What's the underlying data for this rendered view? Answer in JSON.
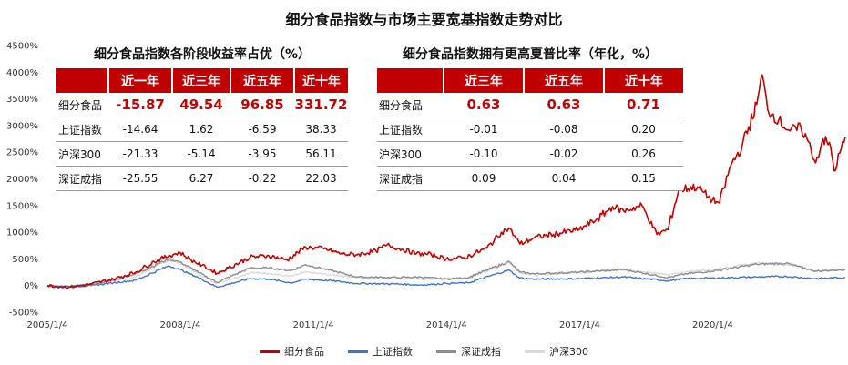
{
  "title": "细分食品指数与市场主要宽基指数走势对比",
  "chart_data": {
    "type": "line",
    "ylim": [
      -500,
      4500
    ],
    "yticks": [
      "-500%",
      "0%",
      "500%",
      "1000%",
      "1500%",
      "2000%",
      "2500%",
      "3000%",
      "3500%",
      "4000%",
      "4500%"
    ],
    "yunit": "%",
    "xlim": [
      "2005/1/4",
      "2022/12/31"
    ],
    "xticks": [
      "2005/1/4",
      "2008/1/4",
      "2011/1/4",
      "2014/1/4",
      "2017/1/4",
      "2020/1/4"
    ],
    "series": [
      {
        "name": "细分食品",
        "color": "#c00000",
        "points": [
          [
            "2005/1/4",
            0
          ],
          [
            "2005/7/1",
            -30
          ],
          [
            "2006/1/1",
            30
          ],
          [
            "2006/7/1",
            120
          ],
          [
            "2007/1/1",
            250
          ],
          [
            "2007/6/1",
            450
          ],
          [
            "2007/10/1",
            560
          ],
          [
            "2008/1/1",
            620
          ],
          [
            "2008/4/1",
            480
          ],
          [
            "2008/7/1",
            380
          ],
          [
            "2008/11/1",
            230
          ],
          [
            "2009/2/1",
            330
          ],
          [
            "2009/8/1",
            530
          ],
          [
            "2010/1/1",
            560
          ],
          [
            "2010/6/1",
            480
          ],
          [
            "2010/11/1",
            720
          ],
          [
            "2011/4/1",
            690
          ],
          [
            "2011/9/1",
            590
          ],
          [
            "2012/1/1",
            580
          ],
          [
            "2012/6/1",
            650
          ],
          [
            "2012/9/1",
            760
          ],
          [
            "2013/1/1",
            680
          ],
          [
            "2013/5/1",
            600
          ],
          [
            "2013/9/1",
            580
          ],
          [
            "2014/1/1",
            500
          ],
          [
            "2014/6/1",
            520
          ],
          [
            "2014/12/1",
            700
          ],
          [
            "2015/4/1",
            1000
          ],
          [
            "2015/6/1",
            1080
          ],
          [
            "2015/9/1",
            780
          ],
          [
            "2016/1/1",
            900
          ],
          [
            "2016/6/1",
            960
          ],
          [
            "2017/1/1",
            1050
          ],
          [
            "2017/6/1",
            1250
          ],
          [
            "2017/10/1",
            1480
          ],
          [
            "2018/1/1",
            1400
          ],
          [
            "2018/6/1",
            1500
          ],
          [
            "2018/10/1",
            960
          ],
          [
            "2019/1/1",
            1050
          ],
          [
            "2019/4/1",
            1800
          ],
          [
            "2019/9/1",
            1850
          ],
          [
            "2020/1/1",
            1600
          ],
          [
            "2020/3/1",
            1550
          ],
          [
            "2020/6/1",
            2250
          ],
          [
            "2020/9/1",
            2600
          ],
          [
            "2021/1/1",
            3400
          ],
          [
            "2021/2/15",
            3950
          ],
          [
            "2021/4/1",
            3300
          ],
          [
            "2021/7/1",
            3100
          ],
          [
            "2021/10/1",
            2900
          ],
          [
            "2022/1/1",
            2950
          ],
          [
            "2022/3/1",
            2700
          ],
          [
            "2022/5/1",
            2300
          ],
          [
            "2022/7/1",
            2750
          ],
          [
            "2022/9/1",
            2600
          ],
          [
            "2022/10/1",
            2150
          ],
          [
            "2022/12/31",
            2780
          ]
        ]
      },
      {
        "name": "上证指数",
        "color": "#4472c4",
        "points": [
          [
            "2005/1/4",
            0
          ],
          [
            "2005/7/1",
            -20
          ],
          [
            "2006/1/1",
            0
          ],
          [
            "2006/7/1",
            50
          ],
          [
            "2007/1/1",
            100
          ],
          [
            "2007/10/1",
            370
          ],
          [
            "2008/1/1",
            300
          ],
          [
            "2008/6/1",
            150
          ],
          [
            "2008/11/1",
            -30
          ],
          [
            "2009/8/1",
            130
          ],
          [
            "2010/1/1",
            120
          ],
          [
            "2010/7/1",
            50
          ],
          [
            "2010/11/1",
            120
          ],
          [
            "2011/6/1",
            90
          ],
          [
            "2012/1/1",
            40
          ],
          [
            "2012/12/1",
            30
          ],
          [
            "2013/6/1",
            10
          ],
          [
            "2014/1/1",
            40
          ],
          [
            "2014/7/1",
            50
          ],
          [
            "2015/6/1",
            290
          ],
          [
            "2015/9/1",
            140
          ],
          [
            "2016/1/1",
            120
          ],
          [
            "2017/1/1",
            130
          ],
          [
            "2018/1/1",
            160
          ],
          [
            "2019/1/1",
            90
          ],
          [
            "2019/6/1",
            130
          ],
          [
            "2020/1/1",
            140
          ],
          [
            "2021/1/1",
            160
          ],
          [
            "2021/9/1",
            170
          ],
          [
            "2022/5/1",
            130
          ],
          [
            "2022/12/31",
            150
          ]
        ]
      },
      {
        "name": "深证成指",
        "color": "#8c8c8c",
        "points": [
          [
            "2005/1/4",
            0
          ],
          [
            "2005/7/1",
            -20
          ],
          [
            "2006/1/1",
            20
          ],
          [
            "2006/7/1",
            100
          ],
          [
            "2007/1/1",
            220
          ],
          [
            "2007/10/1",
            500
          ],
          [
            "2008/1/1",
            440
          ],
          [
            "2008/6/1",
            250
          ],
          [
            "2008/11/1",
            60
          ],
          [
            "2009/8/1",
            330
          ],
          [
            "2010/1/1",
            330
          ],
          [
            "2010/7/1",
            280
          ],
          [
            "2010/11/1",
            390
          ],
          [
            "2011/6/1",
            280
          ],
          [
            "2012/1/1",
            160
          ],
          [
            "2012/12/1",
            150
          ],
          [
            "2013/6/1",
            160
          ],
          [
            "2014/1/1",
            120
          ],
          [
            "2014/7/1",
            150
          ],
          [
            "2015/6/1",
            450
          ],
          [
            "2015/9/1",
            250
          ],
          [
            "2016/1/1",
            220
          ],
          [
            "2017/1/1",
            250
          ],
          [
            "2018/1/1",
            300
          ],
          [
            "2019/1/1",
            150
          ],
          [
            "2019/6/1",
            220
          ],
          [
            "2020/1/1",
            270
          ],
          [
            "2021/1/1",
            400
          ],
          [
            "2021/9/1",
            420
          ],
          [
            "2022/5/1",
            270
          ],
          [
            "2022/12/31",
            300
          ]
        ]
      },
      {
        "name": "沪深300",
        "color": "#d9d9d9",
        "points": [
          [
            "2005/1/4",
            0
          ],
          [
            "2005/7/1",
            -20
          ],
          [
            "2006/1/1",
            10
          ],
          [
            "2006/7/1",
            80
          ],
          [
            "2007/1/1",
            160
          ],
          [
            "2007/10/1",
            480
          ],
          [
            "2008/1/1",
            420
          ],
          [
            "2008/6/1",
            220
          ],
          [
            "2008/11/1",
            40
          ],
          [
            "2009/8/1",
            240
          ],
          [
            "2010/1/1",
            230
          ],
          [
            "2010/7/1",
            170
          ],
          [
            "2010/11/1",
            250
          ],
          [
            "2011/6/1",
            200
          ],
          [
            "2012/1/1",
            150
          ],
          [
            "2012/12/1",
            130
          ],
          [
            "2013/6/1",
            120
          ],
          [
            "2014/1/1",
            130
          ],
          [
            "2014/7/1",
            140
          ],
          [
            "2015/6/1",
            440
          ],
          [
            "2015/9/1",
            240
          ],
          [
            "2016/1/1",
            200
          ],
          [
            "2017/1/1",
            250
          ],
          [
            "2018/1/1",
            300
          ],
          [
            "2019/1/1",
            200
          ],
          [
            "2019/6/1",
            260
          ],
          [
            "2020/1/1",
            300
          ],
          [
            "2021/1/1",
            420
          ],
          [
            "2021/9/1",
            390
          ],
          [
            "2022/5/1",
            280
          ],
          [
            "2022/12/31",
            300
          ]
        ]
      }
    ]
  },
  "table_left": {
    "caption": "细分食品指数各阶段收益率占优（%）",
    "headers": [
      "",
      "近一年",
      "近三年",
      "近五年",
      "近十年"
    ],
    "rows": [
      {
        "label": "细分食品",
        "values": [
          "-15.87",
          "49.54",
          "96.85",
          "331.72"
        ]
      },
      {
        "label": "上证指数",
        "values": [
          "-14.64",
          "1.62",
          "-6.59",
          "38.33"
        ]
      },
      {
        "label": "沪深300",
        "values": [
          "-21.33",
          "-5.14",
          "-3.95",
          "56.11"
        ]
      },
      {
        "label": "深证成指",
        "values": [
          "-25.55",
          "6.27",
          "-0.22",
          "22.03"
        ]
      }
    ]
  },
  "table_right": {
    "caption": "细分食品指数拥有更高夏普比率（年化，%）",
    "headers": [
      "",
      "近三年",
      "近五年",
      "近十年"
    ],
    "rows": [
      {
        "label": "细分食品",
        "values": [
          "0.63",
          "0.63",
          "0.71"
        ]
      },
      {
        "label": "上证指数",
        "values": [
          "-0.01",
          "-0.08",
          "0.20"
        ]
      },
      {
        "label": "沪深300",
        "values": [
          "-0.10",
          "-0.02",
          "0.26"
        ]
      },
      {
        "label": "深证成指",
        "values": [
          "0.09",
          "0.04",
          "0.15"
        ]
      }
    ]
  },
  "legend": [
    {
      "label": "细分食品",
      "color": "#c00000"
    },
    {
      "label": "上证指数",
      "color": "#4472c4"
    },
    {
      "label": "深证成指",
      "color": "#8c8c8c"
    },
    {
      "label": "沪深300",
      "color": "#d9d9d9"
    }
  ]
}
